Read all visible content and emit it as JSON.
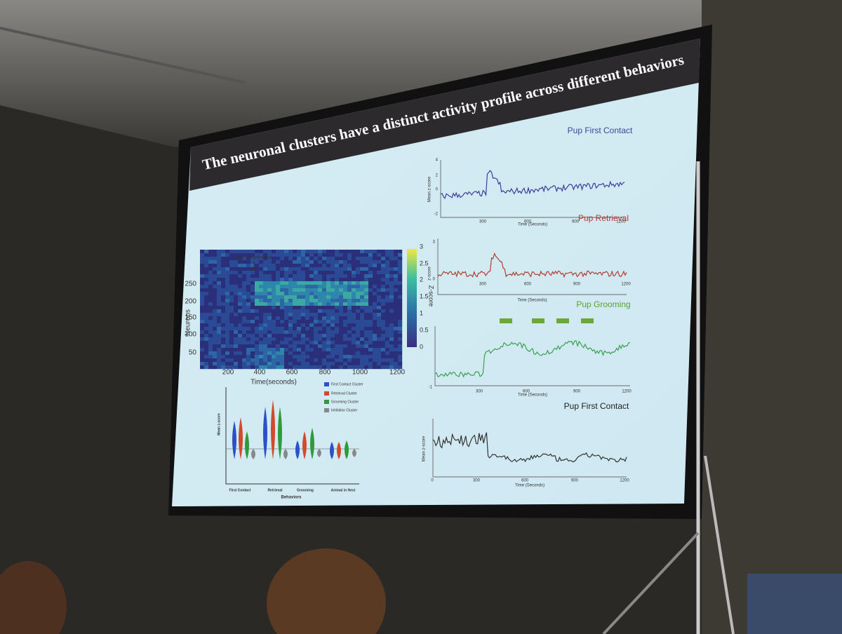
{
  "slide": {
    "title": "The neuronal clusters have a distinct activity profile across different behaviors",
    "heatmap": {
      "annotation": "Pup Introduction",
      "y_label": "Neurons",
      "y_ticks": [
        250,
        200,
        150,
        100,
        50
      ],
      "x_ticks": [
        200,
        400,
        600,
        800,
        1000,
        1200
      ],
      "x_label": "Time(seconds)",
      "colorbar_label": "Z-score",
      "colorbar_ticks": [
        3,
        2.5,
        2,
        1.5,
        1,
        0.5,
        0
      ]
    },
    "violin": {
      "legend": [
        "First Contact Cluster",
        "Retrieval Cluster",
        "Grooming Cluster",
        "Inhibition Cluster"
      ],
      "categories": [
        "First Contact",
        "Retrieval",
        "Grooming",
        "Animal in Nest"
      ],
      "x_label": "Behaviors",
      "y_label": "Mean z-score"
    },
    "panels": [
      {
        "title": "Pup First Contact",
        "y_label": "Mean z-score",
        "y_ticks": [
          4,
          2,
          0,
          -2
        ],
        "x_ticks": [
          300,
          600,
          900,
          1200
        ],
        "x_label": "Time (Seconds)"
      },
      {
        "title": "Pup Retrieval",
        "y_label": "z-score",
        "y_ticks": [
          3,
          0
        ],
        "x_ticks": [
          300,
          600,
          900,
          1200
        ],
        "x_label": "Time (Seconds)"
      },
      {
        "title": "Pup Grooming",
        "y_ticks": [
          -1
        ],
        "x_ticks": [
          300,
          600,
          900,
          1200
        ],
        "x_label": "Time (Seconds)"
      },
      {
        "title": "Pup First Contact",
        "y_label": "Mean z-score",
        "x_ticks": [
          0,
          300,
          600,
          900,
          1200
        ],
        "x_label": "Time (Seconds)"
      }
    ]
  }
}
